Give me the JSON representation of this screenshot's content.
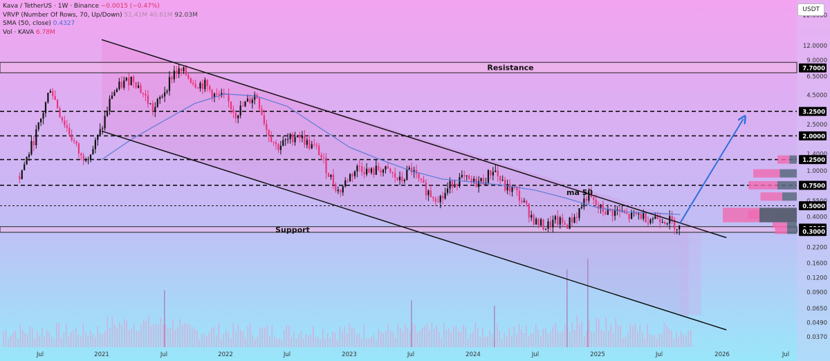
{
  "legend": {
    "title": "Kava / TetherUS · 1W · Binance",
    "change": "−0.0015 (−0.47%)",
    "vrvp_label": "VRVP (Number Of Rows, 70, Up/Down)",
    "vrvp_v1": "51.41M",
    "vrvp_v2": "40.61M",
    "vrvp_v3": "92.03M",
    "sma_label": "SMA (50, close)",
    "sma_value": "0.4327",
    "vol_label": "Vol · KAVA",
    "vol_value": "6.78M"
  },
  "currency_button": "USDT",
  "colors": {
    "bg_top": "#f3a4f0",
    "bg_bottom": "#99e6fa",
    "up_candle": "#111111",
    "down_candle": "#e8347c",
    "sma": "#5b7bd6",
    "arrow": "#2f6fdb",
    "zone_fill": "#f0b8e8",
    "volume": "#d9a8d6",
    "label_bg": "#000000"
  },
  "chart_data": {
    "type": "candlestick",
    "y_scale": "log",
    "ylim": [
      0.033,
      28
    ],
    "y_ticks": [
      {
        "value": 22,
        "label": "22.0000"
      },
      {
        "value": 12,
        "label": "12.0000"
      },
      {
        "value": 9,
        "label": "9.0000"
      },
      {
        "value": 6.5,
        "label": "6.5000"
      },
      {
        "value": 4.5,
        "label": "4.5000"
      },
      {
        "value": 2.5,
        "label": "2.5000"
      },
      {
        "value": 1.4,
        "label": "1.4000"
      },
      {
        "value": 1.0,
        "label": "1.0000"
      },
      {
        "value": 0.55,
        "label": "0.5500"
      },
      {
        "value": 0.4,
        "label": "0.4000"
      },
      {
        "value": 0.22,
        "label": "0.2200"
      },
      {
        "value": 0.16,
        "label": "0.1600"
      },
      {
        "value": 0.12,
        "label": "0.1200"
      },
      {
        "value": 0.09,
        "label": "0.0900"
      },
      {
        "value": 0.065,
        "label": "0.0650"
      },
      {
        "value": 0.049,
        "label": "0.0490"
      },
      {
        "value": 0.037,
        "label": "0.0370"
      }
    ],
    "price_labels": [
      {
        "value": 7.7,
        "label": "7.7000"
      },
      {
        "value": 3.25,
        "label": "3.2500"
      },
      {
        "value": 2.0,
        "label": "2.0000"
      },
      {
        "value": 1.25,
        "label": "1.2500"
      },
      {
        "value": 0.75,
        "label": "0.7500"
      },
      {
        "value": 0.5,
        "label": "0.5000"
      },
      {
        "value": 0.3207,
        "label": "0.3207"
      },
      {
        "value": 0.3,
        "label": "0.3000"
      }
    ],
    "x_ticks": [
      "Jul",
      "2021",
      "Jul",
      "2022",
      "Jul",
      "2023",
      "Jul",
      "2024",
      "Jul",
      "2025",
      "Jul",
      "2026",
      "Jul"
    ],
    "x_tick_dates": [
      "2020-07",
      "2021-01",
      "2021-07",
      "2022-01",
      "2022-07",
      "2023-01",
      "2023-07",
      "2024-01",
      "2024-07",
      "2025-01",
      "2025-07",
      "2026-01",
      "2026-07"
    ],
    "horizontal_levels": [
      {
        "value": 3.25,
        "style": "dashed"
      },
      {
        "value": 2.0,
        "style": "dashed"
      },
      {
        "value": 1.25,
        "style": "dashed"
      },
      {
        "value": 0.75,
        "style": "dashed"
      },
      {
        "value": 0.5,
        "style": "dashed-fine"
      }
    ],
    "zones": [
      {
        "label": "Resistance",
        "top": 8.6,
        "bottom": 7.0
      },
      {
        "label": "Support",
        "top": 0.33,
        "bottom": 0.295
      }
    ],
    "annotations": [
      {
        "text": "ma 50",
        "date": "2024-10",
        "price": 0.62
      }
    ],
    "channel": {
      "upper": [
        {
          "date": "2021-01",
          "price": 13.5
        },
        {
          "date": "2025-09",
          "price": 0.355
        }
      ],
      "lower": [
        {
          "date": "2021-01",
          "price": 2.2
        },
        {
          "date": "2025-09",
          "price": 0.057
        }
      ]
    },
    "projection_arrow": {
      "from": {
        "date": "2025-09",
        "price": 0.355
      },
      "to": {
        "date": "2026-03",
        "price": 2.8
      }
    },
    "sma": [
      {
        "date": "2021-01",
        "price": 1.25
      },
      {
        "date": "2021-04",
        "price": 1.9
      },
      {
        "date": "2021-07",
        "price": 2.7
      },
      {
        "date": "2021-10",
        "price": 3.8
      },
      {
        "date": "2022-01",
        "price": 4.6
      },
      {
        "date": "2022-04",
        "price": 4.4
      },
      {
        "date": "2022-07",
        "price": 3.6
      },
      {
        "date": "2022-10",
        "price": 2.4
      },
      {
        "date": "2023-01",
        "price": 1.6
      },
      {
        "date": "2023-04",
        "price": 1.25
      },
      {
        "date": "2023-07",
        "price": 1.0
      },
      {
        "date": "2023-10",
        "price": 0.85
      },
      {
        "date": "2024-01",
        "price": 0.8
      },
      {
        "date": "2024-04",
        "price": 0.75
      },
      {
        "date": "2024-07",
        "price": 0.68
      },
      {
        "date": "2024-10",
        "price": 0.58
      },
      {
        "date": "2025-01",
        "price": 0.48
      },
      {
        "date": "2025-04",
        "price": 0.44
      },
      {
        "date": "2025-07",
        "price": 0.43
      },
      {
        "date": "2025-09",
        "price": 0.42
      }
    ],
    "price_path": [
      {
        "date": "2020-05",
        "price": 0.9
      },
      {
        "date": "2020-06",
        "price": 1.5
      },
      {
        "date": "2020-07",
        "price": 2.6
      },
      {
        "date": "2020-08",
        "price": 5.3
      },
      {
        "date": "2020-09",
        "price": 3.0
      },
      {
        "date": "2020-10",
        "price": 2.0
      },
      {
        "date": "2020-11",
        "price": 1.3
      },
      {
        "date": "2020-12",
        "price": 1.45
      },
      {
        "date": "2021-01",
        "price": 2.3
      },
      {
        "date": "2021-02",
        "price": 4.6
      },
      {
        "date": "2021-03",
        "price": 5.6
      },
      {
        "date": "2021-04",
        "price": 6.4
      },
      {
        "date": "2021-05",
        "price": 4.6
      },
      {
        "date": "2021-06",
        "price": 3.3
      },
      {
        "date": "2021-07",
        "price": 4.8
      },
      {
        "date": "2021-08",
        "price": 7.2
      },
      {
        "date": "2021-09",
        "price": 7.0
      },
      {
        "date": "2021-10",
        "price": 5.7
      },
      {
        "date": "2021-11",
        "price": 5.5
      },
      {
        "date": "2021-12",
        "price": 4.4
      },
      {
        "date": "2022-01",
        "price": 4.2
      },
      {
        "date": "2022-02",
        "price": 3.1
      },
      {
        "date": "2022-03",
        "price": 3.8
      },
      {
        "date": "2022-04",
        "price": 4.6
      },
      {
        "date": "2022-05",
        "price": 2.3
      },
      {
        "date": "2022-06",
        "price": 1.6
      },
      {
        "date": "2022-07",
        "price": 1.8
      },
      {
        "date": "2022-08",
        "price": 2.1
      },
      {
        "date": "2022-09",
        "price": 1.7
      },
      {
        "date": "2022-10",
        "price": 1.5
      },
      {
        "date": "2022-11",
        "price": 0.95
      },
      {
        "date": "2022-12",
        "price": 0.65
      },
      {
        "date": "2023-01",
        "price": 0.9
      },
      {
        "date": "2023-02",
        "price": 1.1
      },
      {
        "date": "2023-03",
        "price": 0.95
      },
      {
        "date": "2023-04",
        "price": 1.05
      },
      {
        "date": "2023-05",
        "price": 0.95
      },
      {
        "date": "2023-06",
        "price": 0.8
      },
      {
        "date": "2023-07",
        "price": 1.05
      },
      {
        "date": "2023-08",
        "price": 0.75
      },
      {
        "date": "2023-09",
        "price": 0.62
      },
      {
        "date": "2023-10",
        "price": 0.58
      },
      {
        "date": "2023-11",
        "price": 0.8
      },
      {
        "date": "2023-12",
        "price": 0.85
      },
      {
        "date": "2024-01",
        "price": 0.78
      },
      {
        "date": "2024-02",
        "price": 0.82
      },
      {
        "date": "2024-03",
        "price": 1.05
      },
      {
        "date": "2024-04",
        "price": 0.72
      },
      {
        "date": "2024-05",
        "price": 0.68
      },
      {
        "date": "2024-06",
        "price": 0.5
      },
      {
        "date": "2024-07",
        "price": 0.36
      },
      {
        "date": "2024-08",
        "price": 0.33
      },
      {
        "date": "2024-09",
        "price": 0.37
      },
      {
        "date": "2024-10",
        "price": 0.34
      },
      {
        "date": "2024-11",
        "price": 0.42
      },
      {
        "date": "2024-12",
        "price": 0.62
      },
      {
        "date": "2025-01",
        "price": 0.48
      },
      {
        "date": "2025-02",
        "price": 0.44
      },
      {
        "date": "2025-03",
        "price": 0.45
      },
      {
        "date": "2025-04",
        "price": 0.4
      },
      {
        "date": "2025-05",
        "price": 0.42
      },
      {
        "date": "2025-06",
        "price": 0.39
      },
      {
        "date": "2025-07",
        "price": 0.4
      },
      {
        "date": "2025-08",
        "price": 0.37
      },
      {
        "date": "2025-09",
        "price": 0.3207
      }
    ],
    "vrvp_rows": [
      {
        "price": 1.25,
        "up": 0.25,
        "down": 0.15
      },
      {
        "price": 0.95,
        "up": 0.55,
        "down": 0.35
      },
      {
        "price": 0.75,
        "up": 0.6,
        "down": 0.4
      },
      {
        "price": 0.6,
        "up": 0.45,
        "down": 0.3
      },
      {
        "price": 0.42,
        "up": 0.55,
        "down": 0.45
      },
      {
        "price": 0.35,
        "up": 0.3,
        "down": 0.2
      },
      {
        "price": 0.31,
        "up": 0.25,
        "down": 0.2
      }
    ],
    "volume_peaks": [
      {
        "date": "2024-10",
        "value": 0.75
      },
      {
        "date": "2024-12",
        "value": 0.85
      },
      {
        "date": "2021-07",
        "value": 0.55
      },
      {
        "date": "2023-07",
        "value": 0.45
      },
      {
        "date": "2024-03",
        "value": 0.4
      }
    ]
  }
}
